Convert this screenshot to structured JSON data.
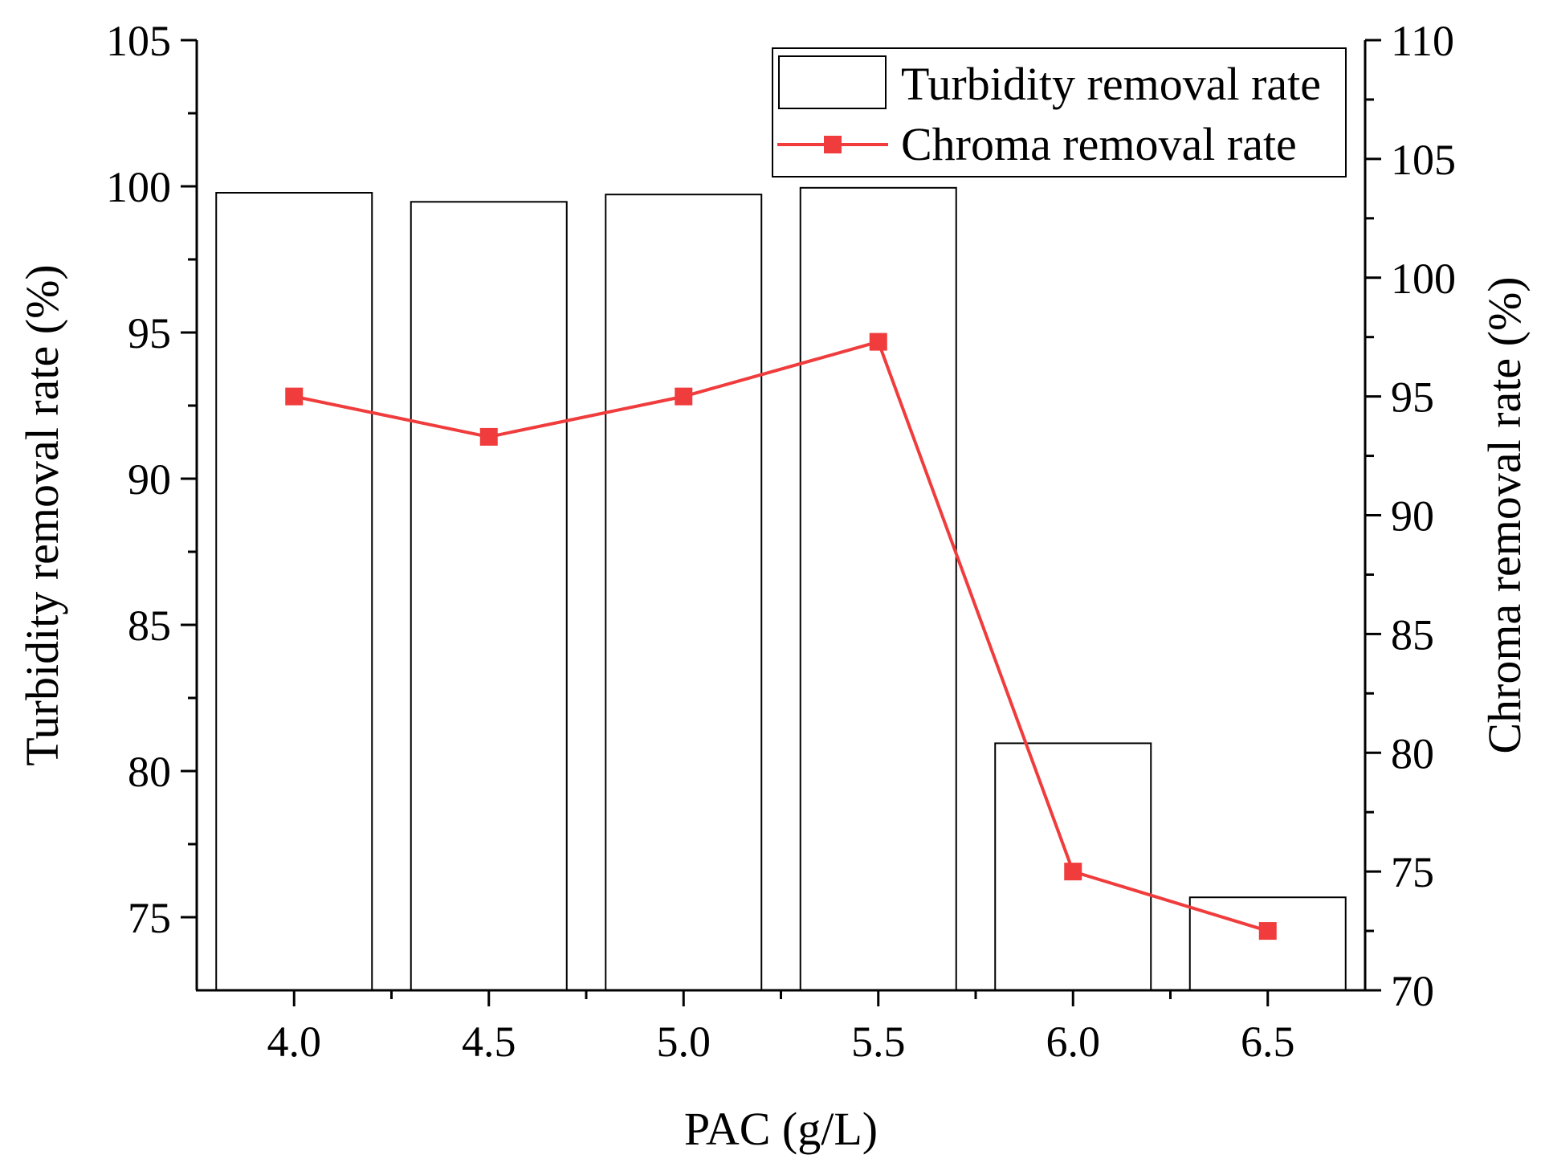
{
  "chart_data": {
    "type": "bar",
    "title": "",
    "xlabel": "PAC (g/L)",
    "categories": [
      "4.0",
      "4.5",
      "5.0",
      "5.5",
      "6.0",
      "6.5"
    ],
    "xlim": [
      3.75,
      6.75
    ],
    "series": [
      {
        "name": "Turbidity removal rate",
        "type": "bar",
        "axis": "left",
        "values": [
          99.78,
          99.47,
          99.72,
          99.95,
          80.95,
          75.68
        ]
      },
      {
        "name": "Chroma removal rate",
        "type": "line",
        "axis": "right",
        "marker": "square",
        "values": [
          95.0,
          93.3,
          95.0,
          97.3,
          75.0,
          72.5
        ]
      }
    ],
    "y_left": {
      "label": "Turbidity removal rate (%)",
      "ylim": [
        72.5,
        105
      ],
      "ticks": [
        "75",
        "80",
        "85",
        "90",
        "95",
        "100",
        "105"
      ]
    },
    "y_right": {
      "label": "Chroma removal rate (%)",
      "ylim": [
        70,
        110
      ],
      "ticks": [
        "70",
        "75",
        "80",
        "85",
        "90",
        "95",
        "100",
        "105",
        "110"
      ]
    },
    "legend": {
      "position": "top-right",
      "entries": [
        "Turbidity removal rate",
        "Chroma removal rate"
      ]
    },
    "grid": false,
    "colors": {
      "bar_edge": "#000000",
      "bar_fill": "#ffffff",
      "line": "#f03c3c",
      "axis": "#000000"
    }
  }
}
